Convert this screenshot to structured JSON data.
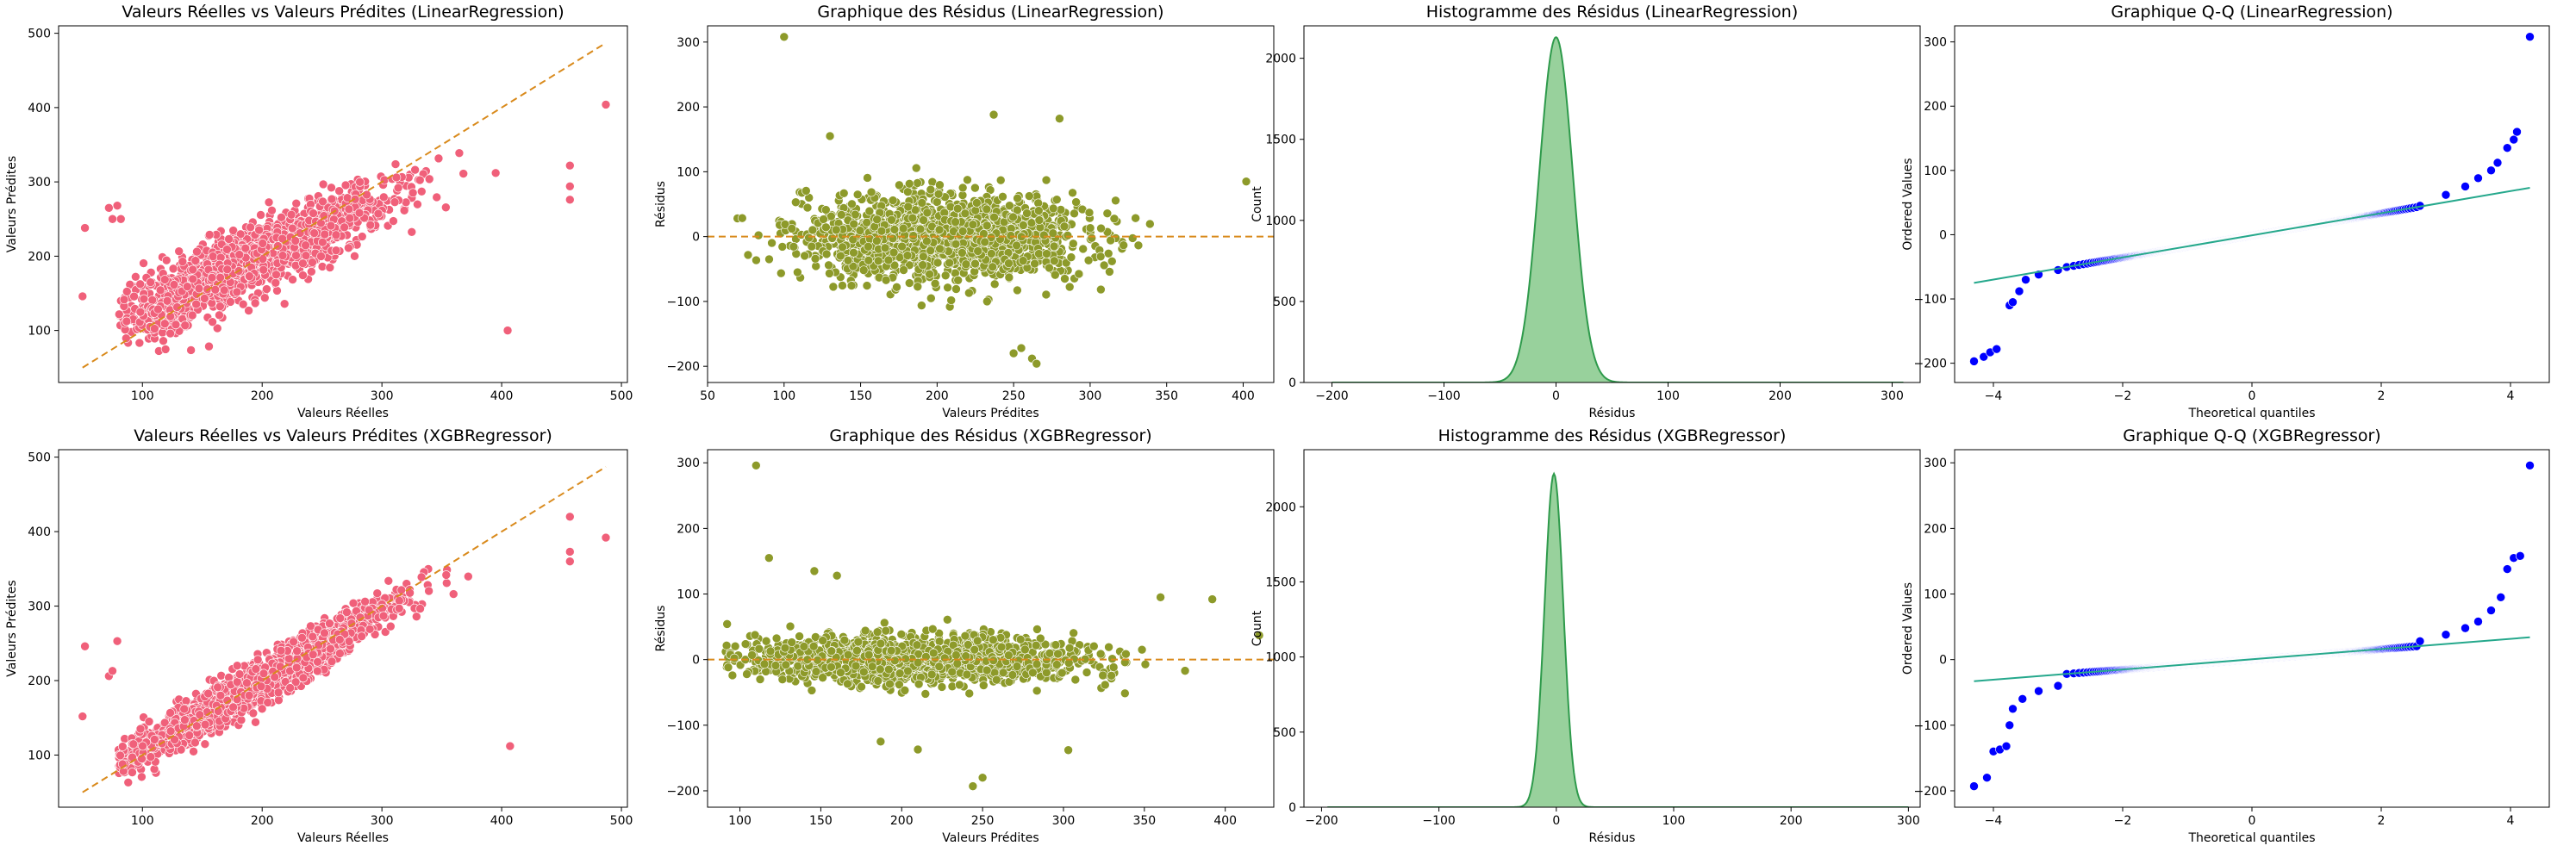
{
  "colors": {
    "scatter_fill": "#f0607a",
    "residual_fill": "#8d9a2a",
    "reference_line": "#d98a1c",
    "hist_fill": "#86c98b",
    "hist_line": "#2e9a4b",
    "qq_points": "#0000ff",
    "qq_line": "#25a88c"
  },
  "chart_data": [
    {
      "id": "lr-actual-vs-pred",
      "type": "scatter",
      "title": "Valeurs Réelles vs Valeurs Prédites (LinearRegression)",
      "xlabel": "Valeurs Réelles",
      "ylabel": "Valeurs Prédites",
      "xlim": [
        30,
        505
      ],
      "ylim": [
        30,
        510
      ],
      "xticks": [
        100,
        200,
        300,
        400,
        500
      ],
      "yticks": [
        100,
        200,
        300,
        400,
        500
      ],
      "reference_line": {
        "x": [
          50,
          487
        ],
        "y": [
          50,
          487
        ]
      },
      "cloud": {
        "x_center": 190,
        "x_spread": 60,
        "x_range": [
          80,
          380
        ],
        "slope": 0.72,
        "intercept": 55,
        "noise": 22
      },
      "outliers": [
        {
          "x": 50,
          "y": 146
        },
        {
          "x": 52,
          "y": 238
        },
        {
          "x": 72,
          "y": 265
        },
        {
          "x": 75,
          "y": 250
        },
        {
          "x": 79,
          "y": 268
        },
        {
          "x": 82,
          "y": 250
        },
        {
          "x": 405,
          "y": 100
        },
        {
          "x": 457,
          "y": 322
        },
        {
          "x": 457,
          "y": 294
        },
        {
          "x": 457,
          "y": 276
        },
        {
          "x": 487,
          "y": 404
        },
        {
          "x": 395,
          "y": 312
        }
      ]
    },
    {
      "id": "lr-residuals",
      "type": "scatter",
      "title": "Graphique des Résidus (LinearRegression)",
      "xlabel": "Valeurs Prédites",
      "ylabel": "Résidus",
      "xlim": [
        50,
        420
      ],
      "ylim": [
        -225,
        325
      ],
      "xticks": [
        50,
        100,
        150,
        200,
        250,
        300,
        350,
        400
      ],
      "yticks": [
        -200,
        -100,
        0,
        100,
        200,
        300
      ],
      "reference_line": {
        "y": 0
      },
      "cloud": {
        "x_center": 205,
        "x_spread": 45,
        "x_range": [
          65,
          340
        ],
        "noise": 32
      },
      "outliers": [
        {
          "x": 100,
          "y": 308
        },
        {
          "x": 402,
          "y": 85
        },
        {
          "x": 237,
          "y": 188
        },
        {
          "x": 250,
          "y": -180
        },
        {
          "x": 255,
          "y": -172
        },
        {
          "x": 262,
          "y": -188
        },
        {
          "x": 265,
          "y": -196
        },
        {
          "x": 280,
          "y": 182
        },
        {
          "x": 130,
          "y": 155
        }
      ]
    },
    {
      "id": "lr-hist",
      "type": "area",
      "title": "Histogramme des Résidus (LinearRegression)",
      "xlabel": "Résidus",
      "ylabel": "Count",
      "xlim": [
        -225,
        325
      ],
      "ylim": [
        0,
        2200
      ],
      "xticks": [
        -200,
        -100,
        0,
        100,
        200,
        300
      ],
      "yticks": [
        0,
        500,
        1000,
        1500,
        2000
      ],
      "peak": 2130,
      "center": 0,
      "sigma": 15,
      "x_range": [
        -200,
        310
      ]
    },
    {
      "id": "lr-qq",
      "type": "scatter",
      "title": "Graphique Q-Q (LinearRegression)",
      "xlabel": "Theoretical quantiles",
      "ylabel": "Ordered Values",
      "xlim": [
        -4.6,
        4.6
      ],
      "ylim": [
        -230,
        325
      ],
      "xticks": [
        -4,
        -2,
        0,
        2,
        4
      ],
      "yticks": [
        -200,
        -100,
        0,
        100,
        200,
        300
      ],
      "fit_line": {
        "x": [
          -4.3,
          4.3
        ],
        "y": [
          -75,
          73
        ]
      },
      "points": {
        "scale": 15,
        "sigma": 0.0,
        "upper_tail": [
          [
            2.6,
            45
          ],
          [
            3.0,
            62
          ],
          [
            3.3,
            75
          ],
          [
            3.5,
            88
          ],
          [
            3.7,
            100
          ],
          [
            3.8,
            112
          ],
          [
            3.95,
            135
          ],
          [
            4.05,
            148
          ],
          [
            4.1,
            160
          ],
          [
            4.3,
            308
          ]
        ],
        "lower_tail": [
          [
            -4.3,
            -197
          ],
          [
            -4.15,
            -190
          ],
          [
            -4.05,
            -183
          ],
          [
            -3.95,
            -178
          ],
          [
            -3.75,
            -110
          ],
          [
            -3.7,
            -105
          ],
          [
            -3.6,
            -88
          ],
          [
            -3.5,
            -70
          ],
          [
            -3.3,
            -62
          ],
          [
            -3.0,
            -55
          ]
        ]
      }
    },
    {
      "id": "xgb-actual-vs-pred",
      "type": "scatter",
      "title": "Valeurs Réelles vs Valeurs Prédites (XGBRegressor)",
      "xlabel": "Valeurs Réelles",
      "ylabel": "Valeurs Prédites",
      "xlim": [
        30,
        505
      ],
      "ylim": [
        30,
        510
      ],
      "xticks": [
        100,
        200,
        300,
        400,
        500
      ],
      "yticks": [
        100,
        200,
        300,
        400,
        500
      ],
      "reference_line": {
        "x": [
          50,
          487
        ],
        "y": [
          50,
          487
        ]
      },
      "cloud": {
        "x_center": 190,
        "x_spread": 60,
        "x_range": [
          80,
          380
        ],
        "slope": 0.93,
        "intercept": 14,
        "noise": 15
      },
      "outliers": [
        {
          "x": 50,
          "y": 152
        },
        {
          "x": 52,
          "y": 246
        },
        {
          "x": 72,
          "y": 206
        },
        {
          "x": 75,
          "y": 213
        },
        {
          "x": 79,
          "y": 253
        },
        {
          "x": 407,
          "y": 112
        },
        {
          "x": 457,
          "y": 420
        },
        {
          "x": 457,
          "y": 373
        },
        {
          "x": 457,
          "y": 360
        },
        {
          "x": 487,
          "y": 392
        }
      ]
    },
    {
      "id": "xgb-residuals",
      "type": "scatter",
      "title": "Graphique des Résidus (XGBRegressor)",
      "xlabel": "Valeurs Prédites",
      "ylabel": "Résidus",
      "xlim": [
        80,
        430
      ],
      "ylim": [
        -225,
        320
      ],
      "xticks": [
        100,
        150,
        200,
        250,
        300,
        350,
        400
      ],
      "yticks": [
        -200,
        -100,
        0,
        100,
        200,
        300
      ],
      "reference_line": {
        "y": 0
      },
      "cloud": {
        "x_center": 210,
        "x_spread": 50,
        "x_range": [
          90,
          380
        ],
        "noise": 17
      },
      "outliers": [
        {
          "x": 110,
          "y": 296
        },
        {
          "x": 118,
          "y": 155
        },
        {
          "x": 146,
          "y": 135
        },
        {
          "x": 160,
          "y": 128
        },
        {
          "x": 187,
          "y": -125
        },
        {
          "x": 210,
          "y": -137
        },
        {
          "x": 244,
          "y": -193
        },
        {
          "x": 250,
          "y": -180
        },
        {
          "x": 303,
          "y": -138
        },
        {
          "x": 360,
          "y": 95
        },
        {
          "x": 392,
          "y": 92
        },
        {
          "x": 421,
          "y": 37
        }
      ]
    },
    {
      "id": "xgb-hist",
      "type": "area",
      "title": "Histogramme des Résidus (XGBRegressor)",
      "xlabel": "Résidus",
      "ylabel": "Count",
      "xlim": [
        -215,
        310
      ],
      "ylim": [
        0,
        2380
      ],
      "xticks": [
        -200,
        -100,
        0,
        100,
        200,
        300
      ],
      "yticks": [
        0,
        500,
        1000,
        1500,
        2000
      ],
      "peak": 2220,
      "center": -2,
      "sigma": 8,
      "x_range": [
        -195,
        300
      ]
    },
    {
      "id": "xgb-qq",
      "type": "scatter",
      "title": "Graphique Q-Q (XGBRegressor)",
      "xlabel": "Theoretical quantiles",
      "ylabel": "Ordered Values",
      "xlim": [
        -4.6,
        4.6
      ],
      "ylim": [
        -225,
        320
      ],
      "xticks": [
        -4,
        -2,
        0,
        2,
        4
      ],
      "yticks": [
        -200,
        -100,
        0,
        100,
        200,
        300
      ],
      "fit_line": {
        "x": [
          -4.3,
          4.3
        ],
        "y": [
          -33,
          34
        ]
      },
      "points": {
        "scale": 8,
        "sigma": 0.0,
        "upper_tail": [
          [
            2.6,
            28
          ],
          [
            3.0,
            38
          ],
          [
            3.3,
            48
          ],
          [
            3.5,
            58
          ],
          [
            3.7,
            75
          ],
          [
            3.85,
            95
          ],
          [
            3.95,
            138
          ],
          [
            4.05,
            155
          ],
          [
            4.15,
            158
          ],
          [
            4.3,
            296
          ]
        ],
        "lower_tail": [
          [
            -4.3,
            -193
          ],
          [
            -4.1,
            -180
          ],
          [
            -4.0,
            -140
          ],
          [
            -3.9,
            -137
          ],
          [
            -3.8,
            -132
          ],
          [
            -3.75,
            -100
          ],
          [
            -3.7,
            -75
          ],
          [
            -3.55,
            -60
          ],
          [
            -3.3,
            -48
          ],
          [
            -3.0,
            -40
          ]
        ]
      }
    }
  ]
}
